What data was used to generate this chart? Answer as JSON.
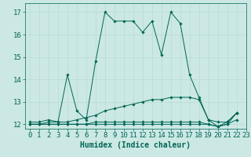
{
  "xlabel": "Humidex (Indice chaleur)",
  "background_color": "#cce8e4",
  "grid_color": "#b8ddd8",
  "line_color": "#006655",
  "xlim": [
    -0.5,
    23
  ],
  "ylim": [
    11.8,
    17.4
  ],
  "yticks": [
    12,
    13,
    14,
    15,
    16,
    17
  ],
  "xticks": [
    0,
    1,
    2,
    3,
    4,
    5,
    6,
    7,
    8,
    9,
    10,
    11,
    12,
    13,
    14,
    15,
    16,
    17,
    18,
    19,
    20,
    21,
    22,
    23
  ],
  "series": [
    {
      "x": [
        0,
        1,
        2,
        3,
        4,
        5,
        6,
        7,
        8,
        9,
        10,
        11,
        12,
        13,
        14,
        15,
        16,
        17,
        18,
        19,
        20,
        21,
        22
      ],
      "y": [
        12.1,
        12.1,
        12.2,
        12.1,
        14.2,
        12.6,
        12.2,
        14.8,
        17.0,
        16.6,
        16.6,
        16.6,
        16.1,
        16.6,
        15.1,
        17.0,
        16.5,
        14.2,
        13.2,
        12.2,
        11.9,
        12.1,
        12.5
      ]
    },
    {
      "x": [
        0,
        1,
        2,
        3,
        4,
        5,
        6,
        7,
        8,
        9,
        10,
        11,
        12,
        13,
        14,
        15,
        16,
        17,
        18,
        19,
        20,
        21,
        22
      ],
      "y": [
        12.0,
        12.0,
        12.1,
        12.1,
        12.1,
        12.2,
        12.3,
        12.4,
        12.6,
        12.7,
        12.8,
        12.9,
        13.0,
        13.1,
        13.1,
        13.2,
        13.2,
        13.2,
        13.1,
        12.2,
        12.1,
        12.1,
        12.5
      ]
    },
    {
      "x": [
        0,
        1,
        2,
        3,
        4,
        5,
        6,
        7,
        8,
        9,
        10,
        11,
        12,
        13,
        14,
        15,
        16,
        17,
        18,
        19,
        20,
        21,
        22
      ],
      "y": [
        12.0,
        12.0,
        12.0,
        12.0,
        12.0,
        12.0,
        12.0,
        12.0,
        12.0,
        12.0,
        12.0,
        12.0,
        12.0,
        12.0,
        12.0,
        12.0,
        12.0,
        12.0,
        12.0,
        12.0,
        11.9,
        12.0,
        12.2
      ]
    },
    {
      "x": [
        0,
        1,
        2,
        3,
        4,
        5,
        6,
        7,
        8,
        9,
        10,
        11,
        12,
        13,
        14,
        15,
        16,
        17,
        18,
        19,
        20,
        21,
        22
      ],
      "y": [
        12.0,
        12.0,
        12.0,
        12.0,
        12.0,
        12.0,
        12.0,
        12.1,
        12.1,
        12.1,
        12.1,
        12.1,
        12.1,
        12.1,
        12.1,
        12.1,
        12.1,
        12.1,
        12.1,
        12.0,
        11.9,
        12.0,
        12.5
      ]
    }
  ],
  "xlabel_fontsize": 7,
  "tick_fontsize": 6.5
}
